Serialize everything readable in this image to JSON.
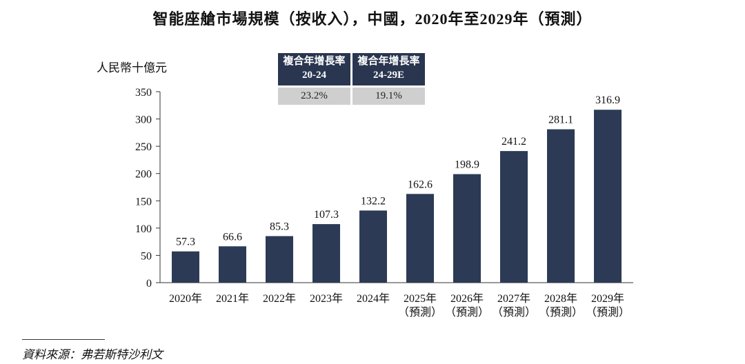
{
  "title": "智能座艙市場規模（按收入），中國，2020年至2029年（預測）",
  "cagr": [
    {
      "label_line1": "複合年增長率",
      "label_line2": "20-24",
      "value": "23.2%"
    },
    {
      "label_line1": "複合年增長率",
      "label_line2": "24-29E",
      "value": "19.1%"
    }
  ],
  "source": "資料來源：弗若斯特沙利文",
  "colors": {
    "bar": "#2c3a55",
    "axis": "#333333",
    "cagr_head": "#2a3650",
    "cagr_val": "#cfcfcf"
  },
  "chart_data": {
    "type": "bar",
    "title": "智能座艙市場規模（按收入），中國，2020年至2029年（預測）",
    "ylabel": "人民幣十億元",
    "xlabel": "",
    "ylim": [
      0,
      350
    ],
    "yticks": [
      0,
      50,
      100,
      150,
      200,
      250,
      300,
      350
    ],
    "categories": [
      "2020年",
      "2021年",
      "2022年",
      "2023年",
      "2024年",
      "2025年",
      "2026年",
      "2027年",
      "2028年",
      "2029年"
    ],
    "category_notes": [
      "",
      "",
      "",
      "",
      "",
      "（預測）",
      "（預測）",
      "（預測）",
      "（預測）",
      "（預測）"
    ],
    "values": [
      57.3,
      66.6,
      85.3,
      107.3,
      132.2,
      162.6,
      198.9,
      241.2,
      281.1,
      316.9
    ],
    "value_labels": [
      "57.3",
      "66.6",
      "85.3",
      "107.3",
      "132.2",
      "162.6",
      "198.9",
      "241.2",
      "281.1",
      "316.9"
    ],
    "grid": false,
    "legend": "none"
  }
}
